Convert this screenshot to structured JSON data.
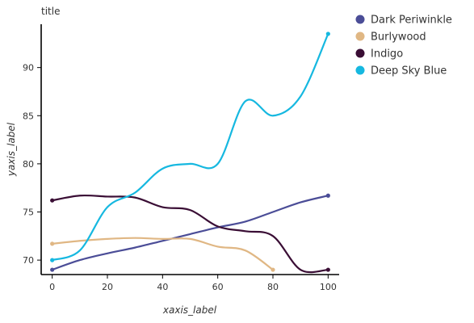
{
  "chart_data": {
    "type": "line",
    "title": "title",
    "xlabel": "xaxis_label",
    "ylabel": "yaxis_label",
    "xlim": [
      -4,
      104
    ],
    "ylim": [
      68.5,
      94.5
    ],
    "xticks": [
      0,
      20,
      40,
      60,
      80,
      100
    ],
    "yticks": [
      70,
      75,
      80,
      85,
      90
    ],
    "grid": false,
    "legend_position": "right",
    "series": [
      {
        "name": "Dark Periwinkle",
        "color": "#4b4d97",
        "x": [
          0,
          10,
          20,
          30,
          40,
          50,
          60,
          70,
          80,
          90,
          100
        ],
        "y": [
          69.0,
          70.0,
          70.7,
          71.3,
          72.0,
          72.7,
          73.4,
          74.0,
          75.0,
          76.0,
          76.7
        ]
      },
      {
        "name": "Burlywood",
        "color": "#e0b784",
        "x": [
          0,
          10,
          20,
          30,
          40,
          50,
          60,
          70,
          80
        ],
        "y": [
          71.7,
          72.0,
          72.2,
          72.3,
          72.2,
          72.2,
          71.4,
          71.0,
          69.0
        ]
      },
      {
        "name": "Indigo",
        "color": "#3a0e35",
        "x": [
          0,
          10,
          20,
          30,
          40,
          50,
          60,
          70,
          80,
          90,
          100
        ],
        "y": [
          76.2,
          76.7,
          76.6,
          76.5,
          75.5,
          75.2,
          73.5,
          73.0,
          72.5,
          69.0,
          69.0
        ]
      },
      {
        "name": "Deep Sky Blue",
        "color": "#16b8e0",
        "x": [
          0,
          10,
          20,
          30,
          40,
          50,
          60,
          70,
          80,
          90,
          100
        ],
        "y": [
          70.0,
          71.0,
          75.5,
          77.0,
          79.5,
          80.0,
          80.0,
          86.5,
          85.0,
          87.0,
          93.5
        ]
      }
    ]
  }
}
